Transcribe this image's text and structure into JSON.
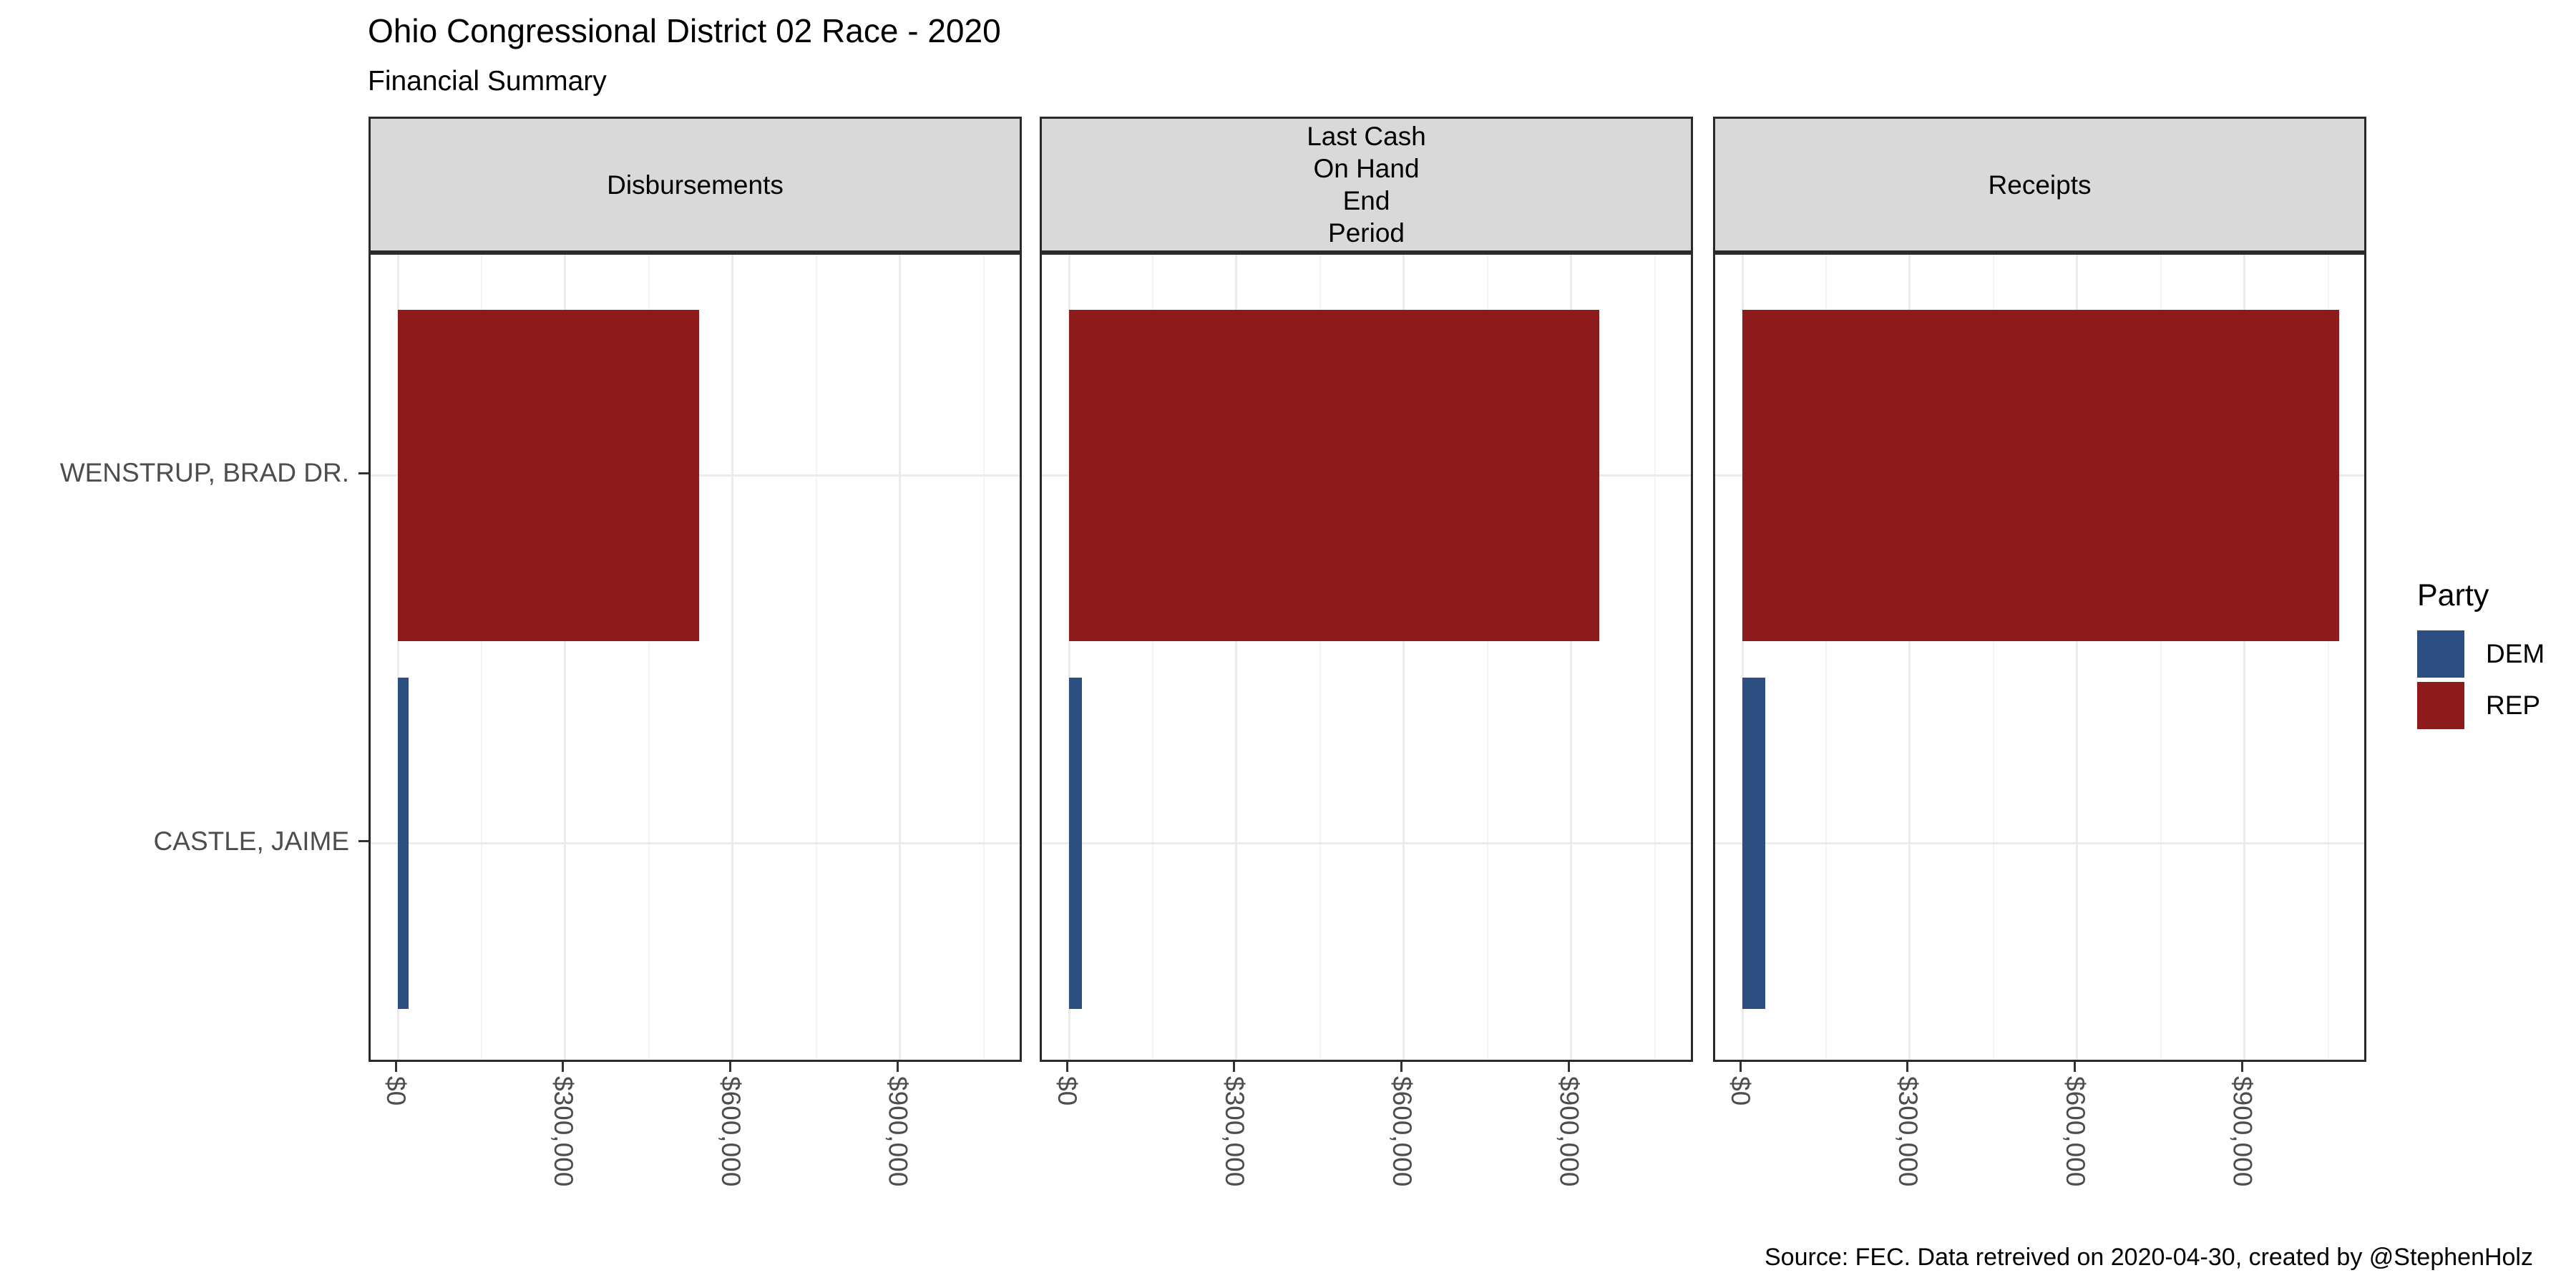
{
  "title": "Ohio Congressional District 02 Race - 2020",
  "subtitle": "Financial Summary",
  "caption": "Source: FEC. Data retreived on 2020-04-30, created by @StephenHolz",
  "legend": {
    "title": "Party",
    "items": [
      {
        "label": "DEM",
        "color": "#2D4E80"
      },
      {
        "label": "REP",
        "color": "#8D1B1B"
      }
    ]
  },
  "chart_data": {
    "type": "bar",
    "orientation": "horizontal",
    "title": "Ohio Congressional District 02 Race - 2020",
    "subtitle": "Financial Summary",
    "categories": [
      "WENSTRUP, BRAD DR.",
      "CASTLE, JAIME"
    ],
    "category_parties": [
      "REP",
      "DEM"
    ],
    "party_colors": {
      "DEM": "#2D4E80",
      "REP": "#8D1B1B"
    },
    "facets": [
      {
        "label": "Disbursements",
        "label_lines": [
          "Disbursements"
        ],
        "values": [
          540000,
          19000
        ]
      },
      {
        "label": "Last Cash On Hand End Period",
        "label_lines": [
          "Last Cash",
          "On Hand",
          "End",
          "Period"
        ],
        "values": [
          950000,
          23000
        ]
      },
      {
        "label": "Receipts",
        "label_lines": [
          "Receipts"
        ],
        "values": [
          1070000,
          41000
        ]
      }
    ],
    "x_tick_labels": [
      "$0",
      "$300,000",
      "$600,000",
      "$900,000"
    ],
    "x_tick_values": [
      0,
      300000,
      600000,
      900000
    ],
    "x_minor_values": [
      150000,
      450000,
      750000,
      1050000
    ],
    "x_domain": [
      -48800,
      1122400
    ],
    "grid": true,
    "legend_position": "right",
    "legend_title": "Party"
  }
}
